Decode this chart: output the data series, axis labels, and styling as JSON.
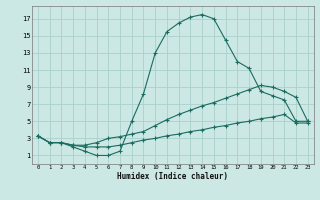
{
  "xlabel": "Humidex (Indice chaleur)",
  "bg_color": "#cce8e4",
  "grid_color": "#aacfcc",
  "line_color": "#1a6b60",
  "xlim": [
    -0.5,
    23.5
  ],
  "ylim": [
    0.0,
    18.5
  ],
  "xticks": [
    0,
    1,
    2,
    3,
    4,
    5,
    6,
    7,
    8,
    9,
    10,
    11,
    12,
    13,
    14,
    15,
    16,
    17,
    18,
    19,
    20,
    21,
    22,
    23
  ],
  "yticks": [
    1,
    3,
    5,
    7,
    9,
    11,
    13,
    15,
    17
  ],
  "series1_x": [
    0,
    1,
    2,
    3,
    4,
    5,
    6,
    7,
    8,
    9,
    10,
    11,
    12,
    13,
    14,
    15,
    16,
    17,
    18,
    19,
    20,
    21,
    22,
    23
  ],
  "series1_y": [
    3.3,
    2.5,
    2.5,
    2.0,
    1.5,
    1.0,
    1.0,
    1.5,
    5.0,
    8.2,
    13.0,
    15.5,
    16.5,
    17.2,
    17.5,
    17.0,
    14.5,
    12.0,
    11.2,
    8.5,
    8.0,
    7.5,
    5.0,
    5.0
  ],
  "series2_x": [
    0,
    1,
    2,
    3,
    4,
    5,
    6,
    7,
    8,
    9,
    10,
    11,
    12,
    13,
    14,
    15,
    16,
    17,
    18,
    19,
    20,
    21,
    22,
    23
  ],
  "series2_y": [
    3.3,
    2.5,
    2.5,
    2.2,
    2.2,
    2.5,
    3.0,
    3.2,
    3.5,
    3.8,
    4.5,
    5.2,
    5.8,
    6.3,
    6.8,
    7.2,
    7.7,
    8.2,
    8.7,
    9.2,
    9.0,
    8.5,
    7.8,
    5.0
  ],
  "series3_x": [
    0,
    1,
    2,
    3,
    4,
    5,
    6,
    7,
    8,
    9,
    10,
    11,
    12,
    13,
    14,
    15,
    16,
    17,
    18,
    19,
    20,
    21,
    22,
    23
  ],
  "series3_y": [
    3.3,
    2.5,
    2.5,
    2.2,
    2.0,
    2.0,
    2.0,
    2.2,
    2.5,
    2.8,
    3.0,
    3.3,
    3.5,
    3.8,
    4.0,
    4.3,
    4.5,
    4.8,
    5.0,
    5.3,
    5.5,
    5.8,
    4.8,
    4.8
  ]
}
